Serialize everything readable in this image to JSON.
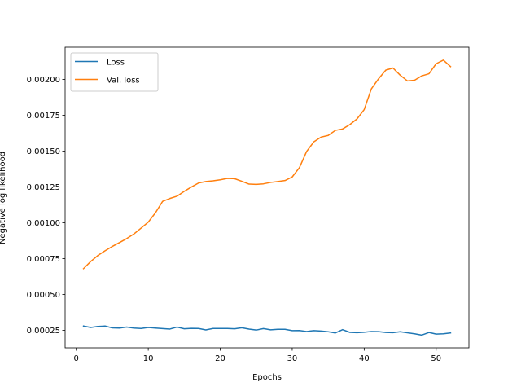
{
  "chart_data": {
    "type": "line",
    "title": "",
    "xlabel": "Epochs",
    "ylabel": "Negative log likelihood",
    "xlim": [
      -1.55,
      54.55
    ],
    "ylim": [
      0.000128,
      0.002225
    ],
    "xticks": [
      0,
      10,
      20,
      30,
      40,
      50
    ],
    "xtick_labels": [
      "0",
      "10",
      "20",
      "30",
      "40",
      "50"
    ],
    "yticks": [
      0.00025,
      0.0005,
      0.00075,
      0.001,
      0.00125,
      0.0015,
      0.00175,
      0.002
    ],
    "ytick_labels": [
      "0.00025",
      "0.00050",
      "0.00075",
      "0.00100",
      "0.00125",
      "0.00150",
      "0.00175",
      "0.00200"
    ],
    "grid": false,
    "legend_position": "top-left",
    "x": [
      1,
      2,
      3,
      4,
      5,
      6,
      7,
      8,
      9,
      10,
      11,
      12,
      13,
      14,
      15,
      16,
      17,
      18,
      19,
      20,
      21,
      22,
      23,
      24,
      25,
      26,
      27,
      28,
      29,
      30,
      31,
      32,
      33,
      34,
      35,
      36,
      37,
      38,
      39,
      40,
      41,
      42,
      43,
      44,
      45,
      46,
      47,
      48,
      49,
      50,
      51,
      52
    ],
    "series": [
      {
        "name": "Loss",
        "color": "#1f77b4",
        "values": [
          0.00028,
          0.00027,
          0.000277,
          0.00028,
          0.000267,
          0.000266,
          0.000273,
          0.000266,
          0.000263,
          0.00027,
          0.000266,
          0.000262,
          0.000259,
          0.000273,
          0.000261,
          0.000264,
          0.000263,
          0.000253,
          0.000263,
          0.000263,
          0.000263,
          0.000261,
          0.000268,
          0.000259,
          0.000252,
          0.000262,
          0.000254,
          0.000257,
          0.000257,
          0.000248,
          0.000249,
          0.000242,
          0.000248,
          0.000245,
          0.00024,
          0.000232,
          0.000255,
          0.000236,
          0.000234,
          0.000237,
          0.000242,
          0.000241,
          0.000235,
          0.000234,
          0.00024,
          0.000233,
          0.000226,
          0.000217,
          0.000235,
          0.000224,
          0.000226,
          0.000232
        ]
      },
      {
        "name": "Val. loss",
        "color": "#ff7f0e",
        "values": [
          0.00068,
          0.00073,
          0.000772,
          0.000805,
          0.000835,
          0.000862,
          0.00089,
          0.000922,
          0.000963,
          0.001005,
          0.00107,
          0.00115,
          0.00117,
          0.001186,
          0.00122,
          0.00125,
          0.001278,
          0.001288,
          0.001293,
          0.0013,
          0.00131,
          0.001308,
          0.00129,
          0.00127,
          0.001268,
          0.001272,
          0.001282,
          0.001288,
          0.001295,
          0.00132,
          0.001385,
          0.001498,
          0.001565,
          0.001598,
          0.00161,
          0.001645,
          0.001655,
          0.001685,
          0.001725,
          0.00179,
          0.001935,
          0.002005,
          0.002065,
          0.00208,
          0.00203,
          0.00199,
          0.001995,
          0.002025,
          0.00204,
          0.00211,
          0.002135,
          0.00209
        ]
      }
    ]
  }
}
